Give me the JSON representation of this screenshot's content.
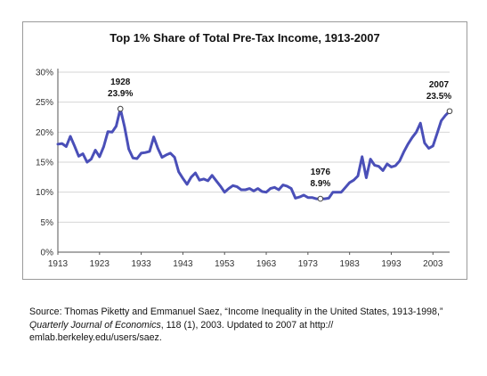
{
  "chart_data": {
    "type": "line",
    "title": "Top 1% Share of Total Pre-Tax Income, 1913-2007",
    "xlabel": "",
    "ylabel": "",
    "xlim": [
      1913,
      2007
    ],
    "ylim": [
      0,
      30
    ],
    "x_ticks": [
      "1913",
      "1923",
      "1933",
      "1943",
      "1953",
      "1963",
      "1973",
      "1983",
      "1993",
      "2003"
    ],
    "y_ticks": [
      "0%",
      "5%",
      "10%",
      "15%",
      "20%",
      "25%",
      "30%"
    ],
    "grid": true,
    "line_color": "#4a4fb8",
    "series": [
      {
        "x": [
          1913,
          1914,
          1915,
          1916,
          1917,
          1918,
          1919,
          1920,
          1921,
          1922,
          1923,
          1924,
          1925,
          1926,
          1927,
          1928,
          1929,
          1930,
          1931,
          1932,
          1933,
          1934,
          1935,
          1936,
          1937,
          1938,
          1939,
          1940,
          1941,
          1942,
          1943,
          1944,
          1945,
          1946,
          1947,
          1948,
          1949,
          1950,
          1951,
          1952,
          1953,
          1954,
          1955,
          1956,
          1957,
          1958,
          1959,
          1960,
          1961,
          1962,
          1963,
          1964,
          1965,
          1966,
          1967,
          1968,
          1969,
          1970,
          1971,
          1972,
          1973,
          1974,
          1975,
          1976,
          1977,
          1978,
          1979,
          1980,
          1981,
          1982,
          1983,
          1984,
          1985,
          1986,
          1987,
          1988,
          1989,
          1990,
          1991,
          1992,
          1993,
          1994,
          1995,
          1996,
          1997,
          1998,
          1999,
          2000,
          2001,
          2002,
          2003,
          2004,
          2005,
          2006,
          2007
        ],
        "values": [
          18.0,
          18.1,
          17.6,
          19.3,
          17.7,
          16.0,
          16.4,
          15.0,
          15.5,
          17.0,
          15.9,
          17.6,
          20.1,
          20.0,
          21.0,
          23.9,
          20.9,
          17.2,
          15.7,
          15.6,
          16.5,
          16.6,
          16.8,
          19.2,
          17.3,
          15.8,
          16.2,
          16.5,
          15.8,
          13.4,
          12.3,
          11.3,
          12.5,
          13.2,
          12.0,
          12.2,
          11.9,
          12.8,
          11.9,
          11.0,
          10.0,
          10.6,
          11.1,
          10.9,
          10.4,
          10.4,
          10.6,
          10.2,
          10.6,
          10.1,
          10.0,
          10.6,
          10.8,
          10.4,
          11.2,
          11.0,
          10.6,
          9.0,
          9.2,
          9.5,
          9.1,
          9.1,
          8.9,
          8.9,
          8.9,
          9.0,
          10.0,
          10.0,
          10.0,
          10.8,
          11.6,
          12.0,
          12.7,
          15.9,
          12.4,
          15.5,
          14.5,
          14.3,
          13.6,
          14.7,
          14.2,
          14.4,
          15.2,
          16.7,
          18.0,
          19.1,
          20.0,
          21.5,
          18.2,
          17.3,
          17.7,
          19.8,
          21.9,
          22.8,
          23.5
        ]
      }
    ],
    "annotations": [
      {
        "year_label": "1928",
        "value_label": "23.9%",
        "x": 1928,
        "y": 23.9
      },
      {
        "year_label": "1976",
        "value_label": "8.9%",
        "x": 1976,
        "y": 8.9
      },
      {
        "year_label": "2007",
        "value_label": "23.5%",
        "x": 2007,
        "y": 23.5
      }
    ]
  },
  "source": {
    "prefix": "Source: Thomas Piketty and Emmanuel Saez, “Income Inequality in the United States, 1913-1998,” ",
    "journal": "Quarterly Journal of Economics",
    "suffix": ", 118 (1), 2003. Updated to 2007 at http://​emlab.berkeley.edu/users/saez."
  }
}
